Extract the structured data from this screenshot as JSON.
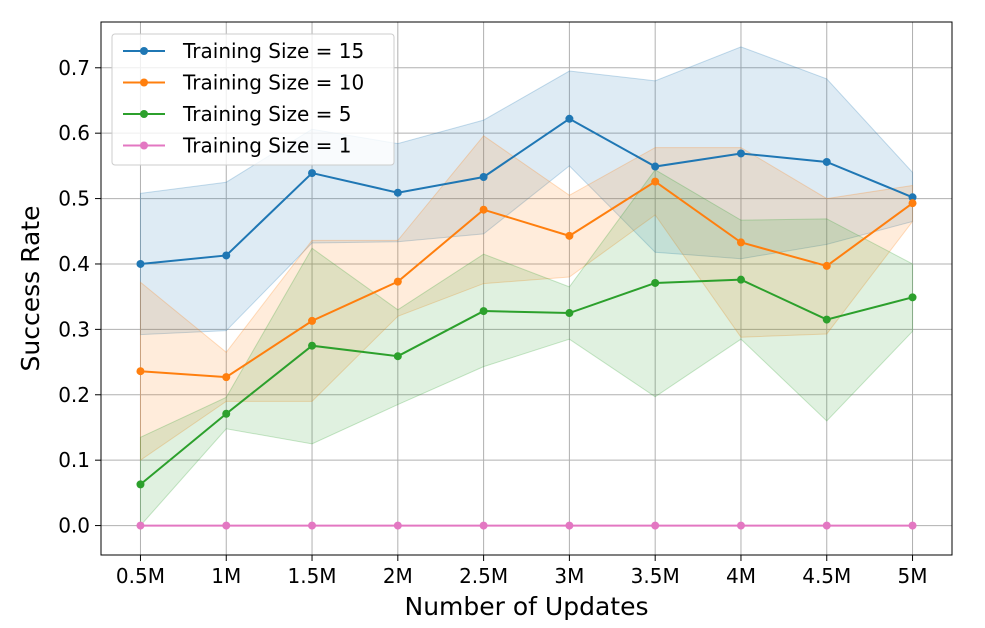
{
  "chart_data": {
    "type": "line",
    "title": "",
    "xlabel": "Number of Updates",
    "ylabel": "Success Rate",
    "categories": [
      "0.5M",
      "1M",
      "1.5M",
      "2M",
      "2.5M",
      "3M",
      "3.5M",
      "4M",
      "4.5M",
      "5M"
    ],
    "x": [
      0.5,
      1.0,
      1.5,
      2.0,
      2.5,
      3.0,
      3.5,
      4.0,
      4.5,
      5.0
    ],
    "xlim": [
      0.27,
      5.23
    ],
    "ylim": [
      -0.045,
      0.77
    ],
    "yticks": [
      0.0,
      0.1,
      0.2,
      0.3,
      0.4,
      0.5,
      0.6,
      0.7
    ],
    "ytick_labels": [
      "0.0",
      "0.1",
      "0.2",
      "0.3",
      "0.4",
      "0.5",
      "0.6",
      "0.7"
    ],
    "grid": true,
    "legend_position": "top-left",
    "series": [
      {
        "name": "Training Size = 15",
        "color": "#1f77b4",
        "values": [
          0.4,
          0.413,
          0.539,
          0.509,
          0.533,
          0.622,
          0.549,
          0.569,
          0.556,
          0.502
        ],
        "lower": [
          0.292,
          0.298,
          0.432,
          0.434,
          0.446,
          0.55,
          0.418,
          0.408,
          0.43,
          0.465
        ],
        "upper": [
          0.508,
          0.525,
          0.606,
          0.584,
          0.62,
          0.695,
          0.68,
          0.732,
          0.683,
          0.54
        ]
      },
      {
        "name": "Training Size = 10",
        "color": "#ff7f0e",
        "values": [
          0.236,
          0.227,
          0.313,
          0.373,
          0.483,
          0.443,
          0.526,
          0.433,
          0.397,
          0.493
        ],
        "lower": [
          0.1,
          0.19,
          0.19,
          0.32,
          0.37,
          0.38,
          0.475,
          0.288,
          0.293,
          0.465
        ],
        "upper": [
          0.372,
          0.265,
          0.436,
          0.436,
          0.596,
          0.505,
          0.578,
          0.578,
          0.5,
          0.52
        ]
      },
      {
        "name": "Training Size = 5",
        "color": "#2ca02c",
        "values": [
          0.063,
          0.171,
          0.275,
          0.259,
          0.328,
          0.325,
          0.371,
          0.376,
          0.315,
          0.349
        ],
        "lower": [
          0.0,
          0.148,
          0.125,
          0.185,
          0.243,
          0.285,
          0.197,
          0.285,
          0.16,
          0.297
        ],
        "upper": [
          0.135,
          0.196,
          0.424,
          0.33,
          0.415,
          0.365,
          0.544,
          0.467,
          0.469,
          0.4
        ]
      },
      {
        "name": "Training Size = 1",
        "color": "#e377c2",
        "values": [
          0.0,
          0.0,
          0.0,
          0.0,
          0.0,
          0.0,
          0.0,
          0.0,
          0.0,
          0.0
        ],
        "lower": [
          0.0,
          0.0,
          0.0,
          0.0,
          0.0,
          0.0,
          0.0,
          0.0,
          0.0,
          0.0
        ],
        "upper": [
          0.0,
          0.0,
          0.0,
          0.0,
          0.0,
          0.0,
          0.0,
          0.0,
          0.0,
          0.0
        ]
      }
    ]
  }
}
